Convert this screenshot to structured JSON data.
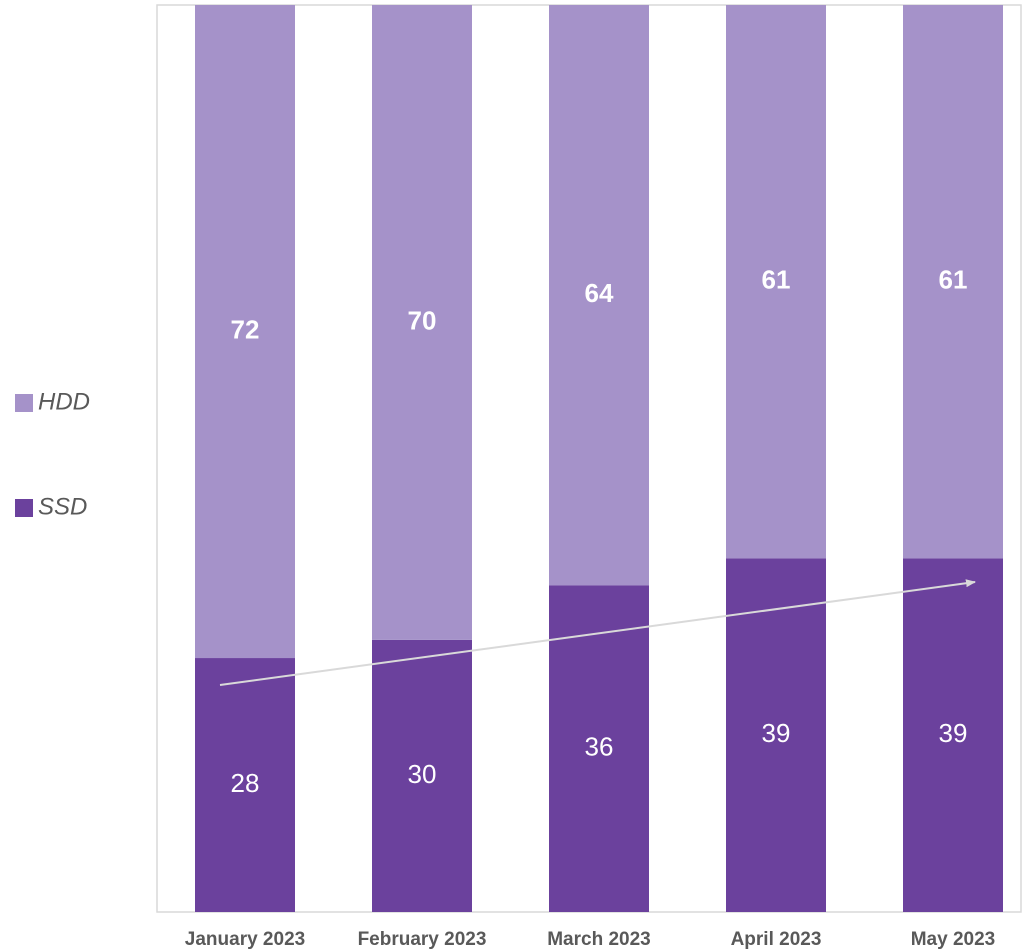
{
  "chart_data": {
    "type": "stacked_bar",
    "categories": [
      "January 2023",
      "February 2023",
      "March 2023",
      "April 2023",
      "May 2023"
    ],
    "series": [
      {
        "name": "SSD",
        "color": "#6b419d",
        "values": [
          28,
          30,
          36,
          39,
          39
        ]
      },
      {
        "name": "HDD",
        "color": "#a592c9",
        "values": [
          72,
          70,
          64,
          61,
          61
        ]
      }
    ],
    "ylim": [
      0,
      100
    ]
  }
}
